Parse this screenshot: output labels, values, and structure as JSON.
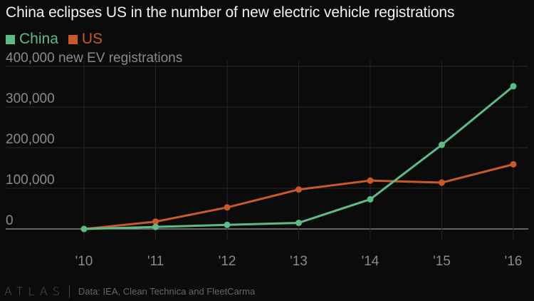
{
  "title": "China eclipses US in the number of new electric vehicle registrations",
  "legend": [
    {
      "label": "China",
      "color": "#5dbb85"
    },
    {
      "label": "US",
      "color": "#c9582b"
    }
  ],
  "footer": {
    "logo": "ATLAS",
    "source": "Data: IEA, Clean Technica and FleetCarma"
  },
  "chart_data": {
    "type": "line",
    "title": "China eclipses US in the number of new electric vehicle registrations",
    "xlabel": "",
    "ylabel": "new EV registrations",
    "categories": [
      "'10",
      "'11",
      "'12",
      "'13",
      "'14",
      "'15",
      "'16"
    ],
    "ylim": [
      0,
      400000
    ],
    "yticks": [
      0,
      100000,
      200000,
      300000,
      400000
    ],
    "ytick_labels": [
      "0",
      "100,000",
      "200,000",
      "300,000",
      "400,000 new EV registrations"
    ],
    "grid": true,
    "legend_position": "top-left",
    "series": [
      {
        "name": "China",
        "color": "#5dbb85",
        "values": [
          0,
          5000,
          10000,
          15000,
          73000,
          207000,
          351000
        ]
      },
      {
        "name": "US",
        "color": "#c9582b",
        "values": [
          0,
          18000,
          53000,
          97000,
          119000,
          114000,
          159000
        ]
      }
    ]
  }
}
